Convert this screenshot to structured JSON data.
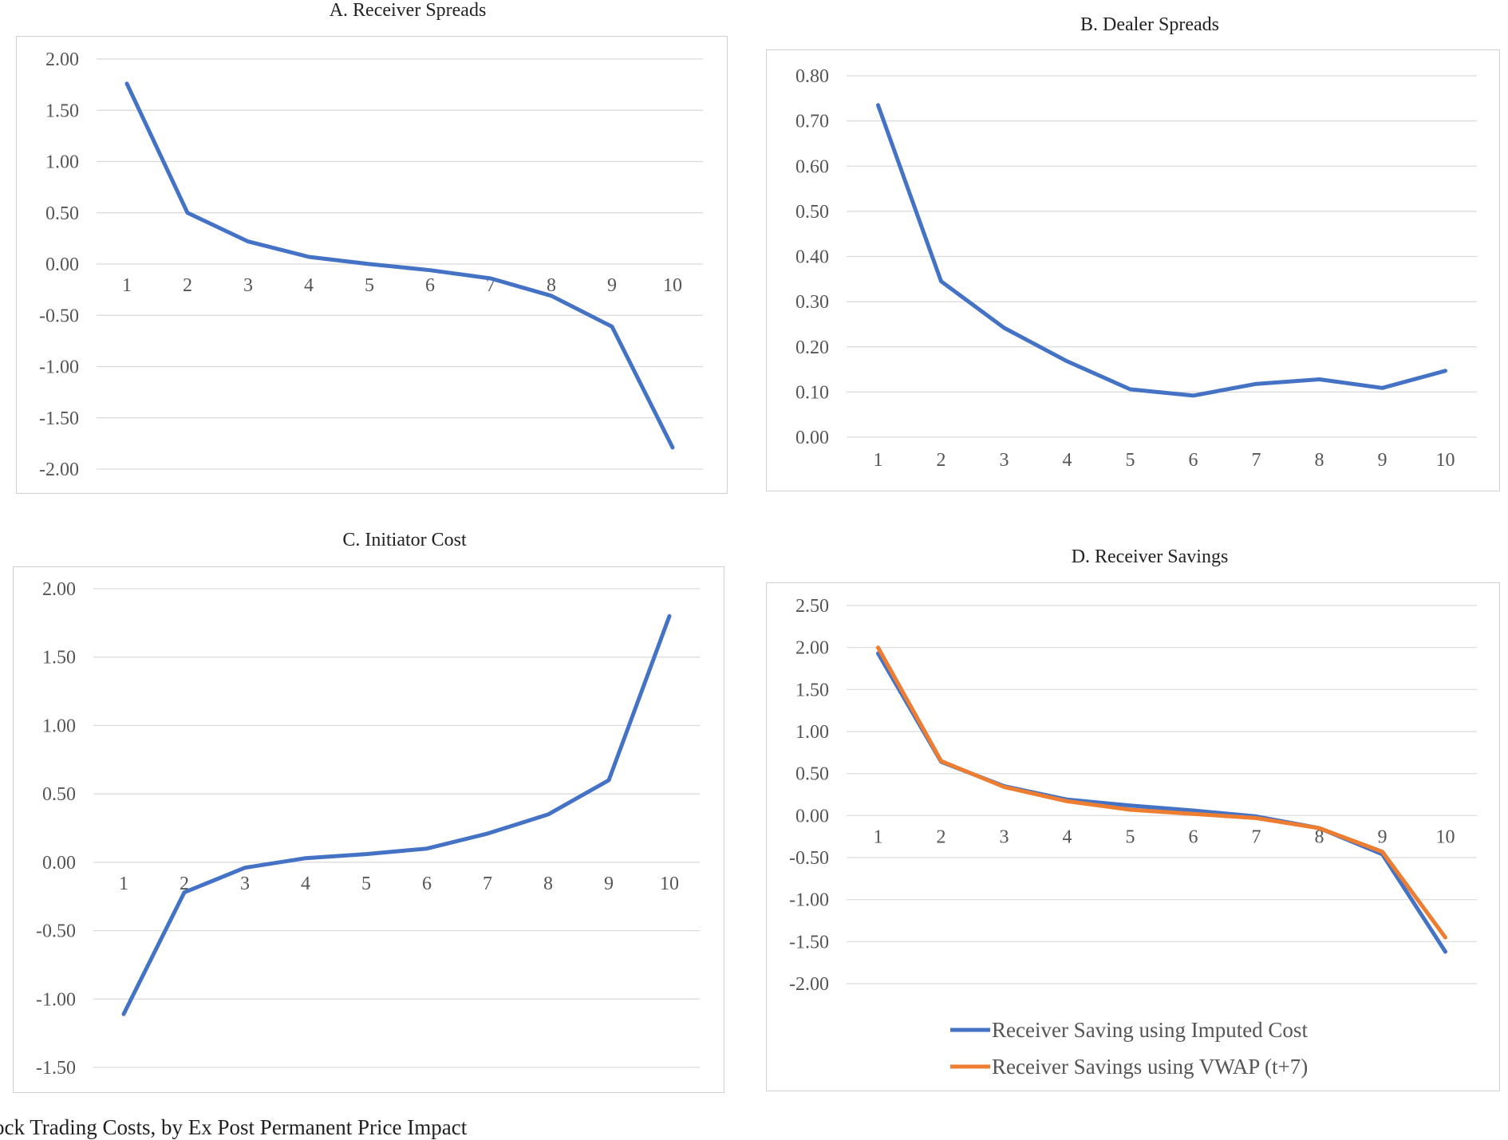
{
  "caption": "ock Trading Costs, by Ex Post Permanent Price Impact",
  "chart_data": [
    {
      "id": "A",
      "type": "line",
      "title": "A.   Receiver Spreads",
      "categories": [
        "1",
        "2",
        "3",
        "4",
        "5",
        "6",
        "7",
        "8",
        "9",
        "10"
      ],
      "ylim": [
        -2,
        2
      ],
      "yticks": [
        "2.00",
        "1.50",
        "1.00",
        "0.50",
        "0.00",
        "-0.50",
        "-1.00",
        "-1.50",
        "-2.00"
      ],
      "ytick_values": [
        2,
        1.5,
        1,
        0.5,
        0,
        -0.5,
        -1,
        -1.5,
        -2
      ],
      "grid": true,
      "series": [
        {
          "color": "#4472C4",
          "values": [
            1.76,
            0.5,
            0.22,
            0.07,
            0.0,
            -0.06,
            -0.14,
            -0.31,
            -0.61,
            -1.79
          ]
        }
      ]
    },
    {
      "id": "B",
      "type": "line",
      "title": "B.   Dealer Spreads",
      "categories": [
        "1",
        "2",
        "3",
        "4",
        "5",
        "6",
        "7",
        "8",
        "9",
        "10"
      ],
      "ylim": [
        0,
        0.8
      ],
      "yticks": [
        "0.80",
        "0.70",
        "0.60",
        "0.50",
        "0.40",
        "0.30",
        "0.20",
        "0.10",
        "0.00"
      ],
      "ytick_values": [
        0.8,
        0.7,
        0.6,
        0.5,
        0.4,
        0.3,
        0.2,
        0.1,
        0
      ],
      "grid": true,
      "series": [
        {
          "color": "#4472C4",
          "values": [
            0.735,
            0.345,
            0.242,
            0.168,
            0.106,
            0.092,
            0.118,
            0.128,
            0.109,
            0.147
          ]
        }
      ]
    },
    {
      "id": "C",
      "type": "line",
      "title": "C.   Initiator Cost",
      "categories": [
        "1",
        "2",
        "3",
        "4",
        "5",
        "6",
        "7",
        "8",
        "9",
        "10"
      ],
      "ylim": [
        -1.5,
        2
      ],
      "yticks": [
        "2.00",
        "1.50",
        "1.00",
        "0.50",
        "0.00",
        "-0.50",
        "-1.00",
        "-1.50"
      ],
      "ytick_values": [
        2,
        1.5,
        1,
        0.5,
        0,
        -0.5,
        -1,
        -1.5
      ],
      "grid": true,
      "series": [
        {
          "color": "#4472C4",
          "values": [
            -1.11,
            -0.22,
            -0.04,
            0.03,
            0.06,
            0.1,
            0.21,
            0.35,
            0.6,
            1.8
          ]
        }
      ]
    },
    {
      "id": "D",
      "type": "line",
      "title": "D.   Receiver Savings",
      "categories": [
        "1",
        "2",
        "3",
        "4",
        "5",
        "6",
        "7",
        "8",
        "9",
        "10"
      ],
      "ylim": [
        -2,
        2.5
      ],
      "yticks": [
        "2.50",
        "2.00",
        "1.50",
        "1.00",
        "0.50",
        "0.00",
        "-0.50",
        "-1.00",
        "-1.50",
        "-2.00"
      ],
      "ytick_values": [
        2.5,
        2,
        1.5,
        1,
        0.5,
        0,
        -0.5,
        -1,
        -1.5,
        -2
      ],
      "grid": true,
      "legend": "bottom",
      "series": [
        {
          "name": "Receiver Saving using Imputed Cost",
          "color": "#4472C4",
          "values": [
            1.93,
            0.64,
            0.35,
            0.19,
            0.12,
            0.06,
            -0.01,
            -0.15,
            -0.46,
            -1.62
          ]
        },
        {
          "name": "Receiver Savings using VWAP (t+7)",
          "color": "#ED7D31",
          "values": [
            2.0,
            0.65,
            0.34,
            0.17,
            0.07,
            0.02,
            -0.03,
            -0.15,
            -0.43,
            -1.45
          ]
        }
      ]
    }
  ]
}
